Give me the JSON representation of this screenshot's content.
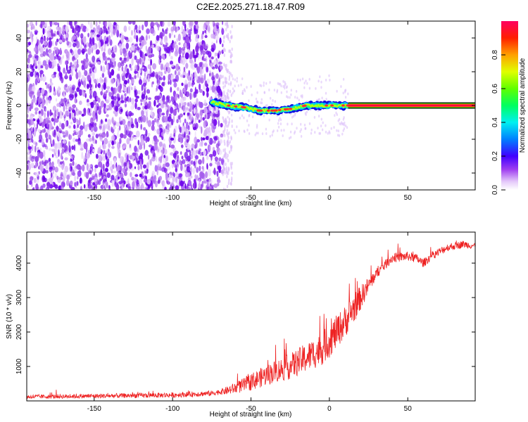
{
  "title": "C2E2.2025.271.18.47.R09",
  "chart_data": [
    {
      "type": "heatmap",
      "name": "spectrogram",
      "xlabel": "Height of straight line (km)",
      "ylabel": "Frequency (Hz)",
      "xlim": [
        -193,
        93
      ],
      "ylim": [
        -50,
        50
      ],
      "xticks": [
        -150,
        -100,
        -50,
        0,
        50
      ],
      "yticks": [
        -40,
        -20,
        0,
        20,
        40
      ],
      "noise_region_x": [
        -193,
        -68
      ],
      "sparse_noise_region_x": [
        -68,
        12
      ],
      "signal_track": [
        {
          "x": -75,
          "y": 2
        },
        {
          "x": -65,
          "y": 0
        },
        {
          "x": -55,
          "y": -1
        },
        {
          "x": -45,
          "y": -3
        },
        {
          "x": -35,
          "y": -3
        },
        {
          "x": -25,
          "y": -2
        },
        {
          "x": -15,
          "y": 0
        },
        {
          "x": -5,
          "y": 0
        },
        {
          "x": 5,
          "y": 0
        },
        {
          "x": 12,
          "y": 0
        }
      ],
      "constant_tone": {
        "x_start": 12,
        "x_end": 93,
        "y": 0
      },
      "colorbar": {
        "label": "Normalized spectral amplitude",
        "range": [
          0,
          1
        ],
        "ticks": [
          "0.0",
          "0.2",
          "0.4",
          "0.6",
          "0.8"
        ],
        "stops": [
          "#ffffff",
          "#d8b0f8",
          "#8a2be2",
          "#0000ff",
          "#00a0ff",
          "#00ffff",
          "#00ff00",
          "#b0ff00",
          "#ffff00",
          "#ff8000",
          "#ff0000",
          "#ff0060"
        ]
      }
    },
    {
      "type": "line",
      "name": "snr",
      "xlabel": "Height of straight line (km)",
      "ylabel": "SNR (10 * v/v)",
      "xlim": [
        -193,
        93
      ],
      "ylim": [
        0,
        4900
      ],
      "xticks": [
        -150,
        -100,
        -50,
        0,
        50
      ],
      "yticks": [
        1000,
        2000,
        3000,
        4000
      ],
      "color": "#ee2222",
      "trend": [
        {
          "x": -193,
          "y": 120
        },
        {
          "x": -150,
          "y": 140
        },
        {
          "x": -100,
          "y": 170
        },
        {
          "x": -75,
          "y": 220
        },
        {
          "x": -65,
          "y": 300
        },
        {
          "x": -55,
          "y": 450
        },
        {
          "x": -45,
          "y": 650
        },
        {
          "x": -35,
          "y": 850
        },
        {
          "x": -25,
          "y": 1000
        },
        {
          "x": -15,
          "y": 1250
        },
        {
          "x": -5,
          "y": 1500
        },
        {
          "x": 0,
          "y": 1750
        },
        {
          "x": 10,
          "y": 2300
        },
        {
          "x": 20,
          "y": 3000
        },
        {
          "x": 30,
          "y": 3700
        },
        {
          "x": 40,
          "y": 4150
        },
        {
          "x": 50,
          "y": 4200
        },
        {
          "x": 55,
          "y": 4150
        },
        {
          "x": 60,
          "y": 4000
        },
        {
          "x": 65,
          "y": 4200
        },
        {
          "x": 75,
          "y": 4450
        },
        {
          "x": 85,
          "y": 4550
        },
        {
          "x": 93,
          "y": 4500
        }
      ],
      "noise_amplitude": [
        {
          "x": -193,
          "y": 60
        },
        {
          "x": -70,
          "y": 80
        },
        {
          "x": -50,
          "y": 250
        },
        {
          "x": -30,
          "y": 350
        },
        {
          "x": 0,
          "y": 500
        },
        {
          "x": 15,
          "y": 450
        },
        {
          "x": 30,
          "y": 150
        },
        {
          "x": 93,
          "y": 100
        }
      ]
    }
  ]
}
